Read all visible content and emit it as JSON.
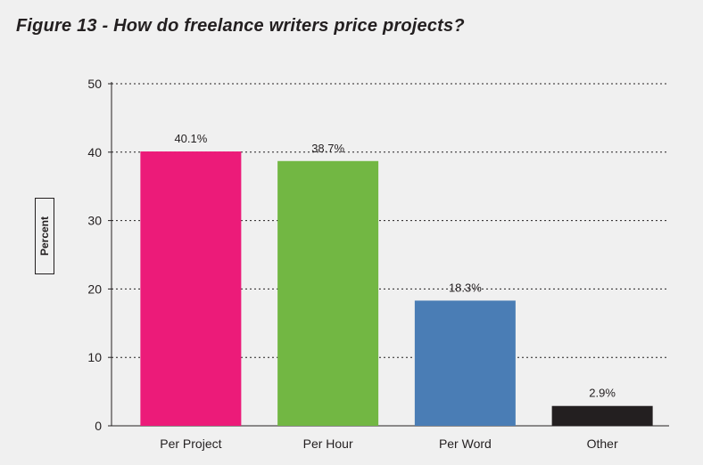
{
  "title": "Figure 13 - How do freelance writers price projects?",
  "chart_data": {
    "type": "bar",
    "title": "Figure 13 - How do freelance writers price projects?",
    "xlabel": "",
    "ylabel": "Percent",
    "ylim": [
      0,
      50
    ],
    "yticks": [
      0,
      10,
      20,
      30,
      40,
      50
    ],
    "grid": true,
    "categories": [
      "Per Project",
      "Per Hour",
      "Per Word",
      "Other"
    ],
    "values": [
      40.1,
      38.7,
      18.3,
      2.9
    ],
    "data_labels": [
      "40.1%",
      "38.7%",
      "18.3%",
      "2.9%"
    ],
    "colors": [
      "#ec1b79",
      "#72b743",
      "#4a7db5",
      "#231f20"
    ]
  }
}
